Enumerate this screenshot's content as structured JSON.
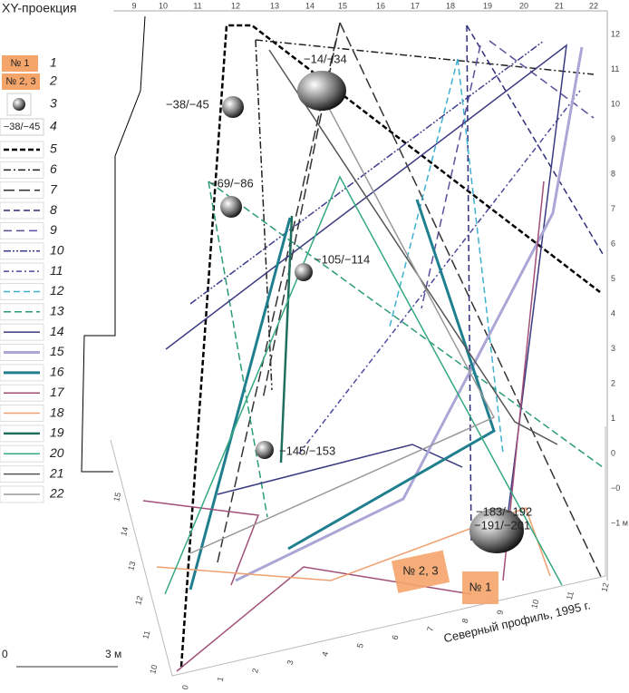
{
  "title": "XY-проекция",
  "top_axis": [
    "9",
    "10",
    "11",
    "12",
    "13",
    "14",
    "15",
    "16",
    "17",
    "18",
    "19",
    "20",
    "21",
    "22"
  ],
  "right_axis": [
    "12",
    "11",
    "10",
    "9",
    "8",
    "7",
    "6",
    "5",
    "4",
    "3",
    "2",
    "1",
    "0",
    "−0",
    "−1 м"
  ],
  "left_axis": [
    "15",
    "14",
    "13",
    "12",
    "11",
    "10"
  ],
  "bottom_axis": [
    "0",
    "1",
    "2",
    "3",
    "4",
    "5",
    "6",
    "7",
    "8",
    "9",
    "10",
    "11",
    "12"
  ],
  "legend": [
    {
      "label": "1",
      "symbol": "№ 1"
    },
    {
      "label": "2",
      "symbol": "№ 2, 3"
    },
    {
      "label": "3"
    },
    {
      "label": "4",
      "symbol": "−38/−45"
    },
    {
      "label": "5",
      "color": "#000000"
    },
    {
      "label": "6",
      "color": "#222222"
    },
    {
      "label": "7",
      "color": "#333333"
    },
    {
      "label": "8",
      "color": "#2e2f7a"
    },
    {
      "label": "9",
      "color": "#5a4f9a"
    },
    {
      "label": "10",
      "color": "#3e3f8c"
    },
    {
      "label": "11",
      "color": "#4a4a9a"
    },
    {
      "label": "12",
      "color": "#3fb0d0"
    },
    {
      "label": "13",
      "color": "#2a9a7a"
    },
    {
      "label": "14",
      "color": "#3a3a80"
    },
    {
      "label": "15",
      "color": "#aaa6d6"
    },
    {
      "label": "16",
      "color": "#1f7f8f"
    },
    {
      "label": "17",
      "color": "#a05078"
    },
    {
      "label": "18",
      "color": "#f0a070"
    },
    {
      "label": "19",
      "color": "#1f6f5f"
    },
    {
      "label": "20",
      "color": "#35a880"
    },
    {
      "label": "21",
      "color": "#555555"
    },
    {
      "label": "22",
      "color": "#999999"
    }
  ],
  "spheres": [
    "−14/−34",
    "−38/−45",
    "−69/−86",
    "−105/−114",
    "−145/−153",
    "−183/−192",
    "−191/−201"
  ],
  "boxes": [
    "№ 2, 3",
    "№ 1"
  ],
  "profile_label": "Северный профиль, 1995 г.",
  "scale": [
    "0",
    "3 м"
  ]
}
